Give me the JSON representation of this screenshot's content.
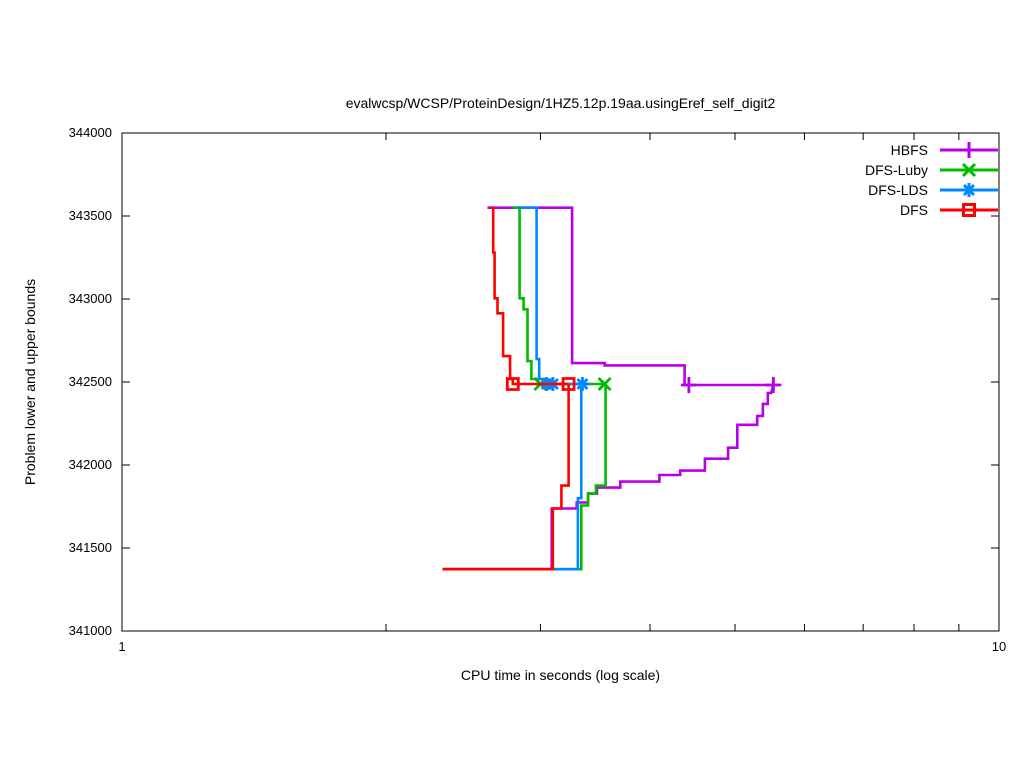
{
  "chart_data": {
    "type": "line",
    "title": "evalwcsp/WCSP/ProteinDesign/1HZ5.12p.19aa.usingEref_self_digit2",
    "xlabel": "CPU time in seconds (log scale)",
    "ylabel": "Problem lower and upper bounds",
    "xscale": "log",
    "xlim": [
      1,
      10
    ],
    "ylim": [
      341000,
      344000
    ],
    "grid": false,
    "legend_position": "top-right-inside",
    "x_ticks": [
      [
        1,
        "1"
      ],
      [
        2,
        ""
      ],
      [
        3,
        ""
      ],
      [
        4,
        ""
      ],
      [
        5,
        ""
      ],
      [
        6,
        ""
      ],
      [
        7,
        ""
      ],
      [
        8,
        ""
      ],
      [
        9,
        ""
      ],
      [
        10,
        "10"
      ]
    ],
    "y_ticks": [
      [
        341000,
        "341000"
      ],
      [
        341500,
        "341500"
      ],
      [
        342000,
        "342000"
      ],
      [
        342500,
        "342500"
      ],
      [
        343000,
        "343000"
      ],
      [
        343500,
        "343500"
      ],
      [
        344000,
        "344000"
      ]
    ],
    "series": [
      {
        "name": "HBFS",
        "color": "#b800e8",
        "marker": "plus",
        "upper_bound": [
          [
            2.61,
            343550
          ],
          [
            3.26,
            343550
          ],
          [
            3.26,
            342614
          ],
          [
            3.55,
            342614
          ],
          [
            3.55,
            342600
          ],
          [
            4.38,
            342600
          ],
          [
            4.38,
            342482
          ],
          [
            5.6,
            342482
          ]
        ],
        "lower_bound": [
          [
            2.32,
            341372
          ],
          [
            3.09,
            341372
          ],
          [
            3.09,
            341738
          ],
          [
            3.3,
            341738
          ],
          [
            3.3,
            341774
          ],
          [
            3.4,
            341774
          ],
          [
            3.4,
            341828
          ],
          [
            3.48,
            341828
          ],
          [
            3.48,
            341864
          ],
          [
            3.7,
            341864
          ],
          [
            3.7,
            341900
          ],
          [
            4.1,
            341900
          ],
          [
            4.1,
            341940
          ],
          [
            4.33,
            341940
          ],
          [
            4.33,
            341966
          ],
          [
            4.62,
            341966
          ],
          [
            4.62,
            342038
          ],
          [
            4.91,
            342038
          ],
          [
            4.91,
            342104
          ],
          [
            5.03,
            342104
          ],
          [
            5.03,
            342242
          ],
          [
            5.3,
            342242
          ],
          [
            5.3,
            342296
          ],
          [
            5.38,
            342296
          ],
          [
            5.38,
            342368
          ],
          [
            5.45,
            342368
          ],
          [
            5.45,
            342434
          ],
          [
            5.5,
            342434
          ],
          [
            5.53,
            342488
          ]
        ],
        "marker_points": [
          [
            4.43,
            342482
          ],
          [
            5.53,
            342482
          ]
        ]
      },
      {
        "name": "DFS-Luby",
        "color": "#00bb00",
        "marker": "cross",
        "upper_bound": [
          [
            2.79,
            343550
          ],
          [
            2.84,
            343550
          ],
          [
            2.84,
            343004
          ],
          [
            2.87,
            343004
          ],
          [
            2.87,
            342938
          ],
          [
            2.9,
            342938
          ],
          [
            2.9,
            342626
          ],
          [
            2.93,
            342626
          ],
          [
            2.93,
            342518
          ],
          [
            2.98,
            342518
          ],
          [
            2.98,
            342488
          ],
          [
            3.56,
            342488
          ]
        ],
        "lower_bound": [
          [
            2.32,
            341372
          ],
          [
            3.34,
            341372
          ],
          [
            3.34,
            341756
          ],
          [
            3.4,
            341756
          ],
          [
            3.4,
            341828
          ],
          [
            3.47,
            341828
          ],
          [
            3.47,
            341876
          ],
          [
            3.56,
            341876
          ],
          [
            3.56,
            342488
          ]
        ],
        "marker_points": [
          [
            3.0,
            342488
          ],
          [
            3.55,
            342488
          ]
        ]
      },
      {
        "name": "DFS-LDS",
        "color": "#0088ff",
        "marker": "star",
        "upper_bound": [
          [
            2.83,
            343550
          ],
          [
            2.97,
            343550
          ],
          [
            2.97,
            342638
          ],
          [
            2.99,
            342638
          ],
          [
            2.99,
            342518
          ],
          [
            3.03,
            342518
          ],
          [
            3.03,
            342488
          ],
          [
            3.35,
            342488
          ]
        ],
        "lower_bound": [
          [
            2.32,
            341372
          ],
          [
            3.31,
            341372
          ],
          [
            3.31,
            341800
          ],
          [
            3.34,
            341800
          ],
          [
            3.34,
            342488
          ]
        ],
        "marker_points": [
          [
            3.05,
            342488
          ],
          [
            3.1,
            342488
          ],
          [
            3.35,
            342488
          ]
        ]
      },
      {
        "name": "DFS",
        "color": "#ff0000",
        "marker": "square",
        "upper_bound": [
          [
            2.63,
            343550
          ],
          [
            2.65,
            343550
          ],
          [
            2.65,
            343280
          ],
          [
            2.66,
            343280
          ],
          [
            2.66,
            343004
          ],
          [
            2.68,
            343004
          ],
          [
            2.68,
            342914
          ],
          [
            2.72,
            342914
          ],
          [
            2.72,
            342656
          ],
          [
            2.77,
            342656
          ],
          [
            2.77,
            342518
          ],
          [
            2.79,
            342518
          ],
          [
            2.79,
            342488
          ],
          [
            3.23,
            342488
          ]
        ],
        "lower_bound": [
          [
            2.32,
            341372
          ],
          [
            3.1,
            341372
          ],
          [
            3.1,
            341738
          ],
          [
            3.17,
            341738
          ],
          [
            3.17,
            341876
          ],
          [
            3.23,
            341876
          ],
          [
            3.23,
            342488
          ]
        ],
        "marker_points": [
          [
            2.79,
            342488
          ],
          [
            3.23,
            342488
          ]
        ]
      }
    ]
  }
}
